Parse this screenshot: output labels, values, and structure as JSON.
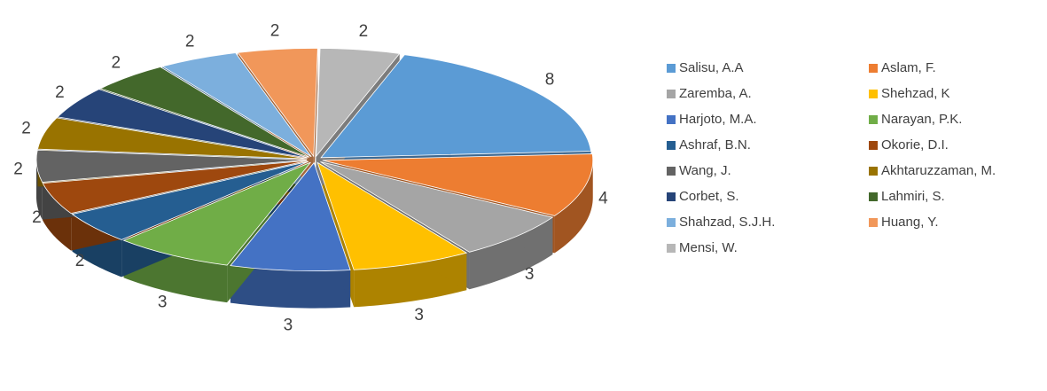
{
  "chart_data": {
    "type": "pie",
    "categories": [
      "Salisu, A.A",
      "Aslam, F.",
      "Zaremba, A.",
      "Shehzad, K",
      "Harjoto, M.A.",
      "Narayan, P.K.",
      "Ashraf, B.N.",
      "Okorie, D.I.",
      "Wang, J.",
      "Akhtaruzzaman, M.",
      "Corbet, S.",
      "Lahmiri, S.",
      "Shahzad, S.J.H.",
      "Huang, Y.",
      "Mensi, W."
    ],
    "values": [
      8,
      4,
      3,
      3,
      3,
      3,
      2,
      2,
      2,
      2,
      2,
      2,
      2,
      2,
      2
    ],
    "colors": [
      "#5b9bd5",
      "#ed7d31",
      "#a5a5a5",
      "#ffc000",
      "#4472c4",
      "#70ad47",
      "#255e91",
      "#9e480e",
      "#636363",
      "#997300",
      "#264478",
      "#43682b",
      "#7cafdd",
      "#f1975a",
      "#b7b7b7"
    ],
    "legend": "right"
  }
}
